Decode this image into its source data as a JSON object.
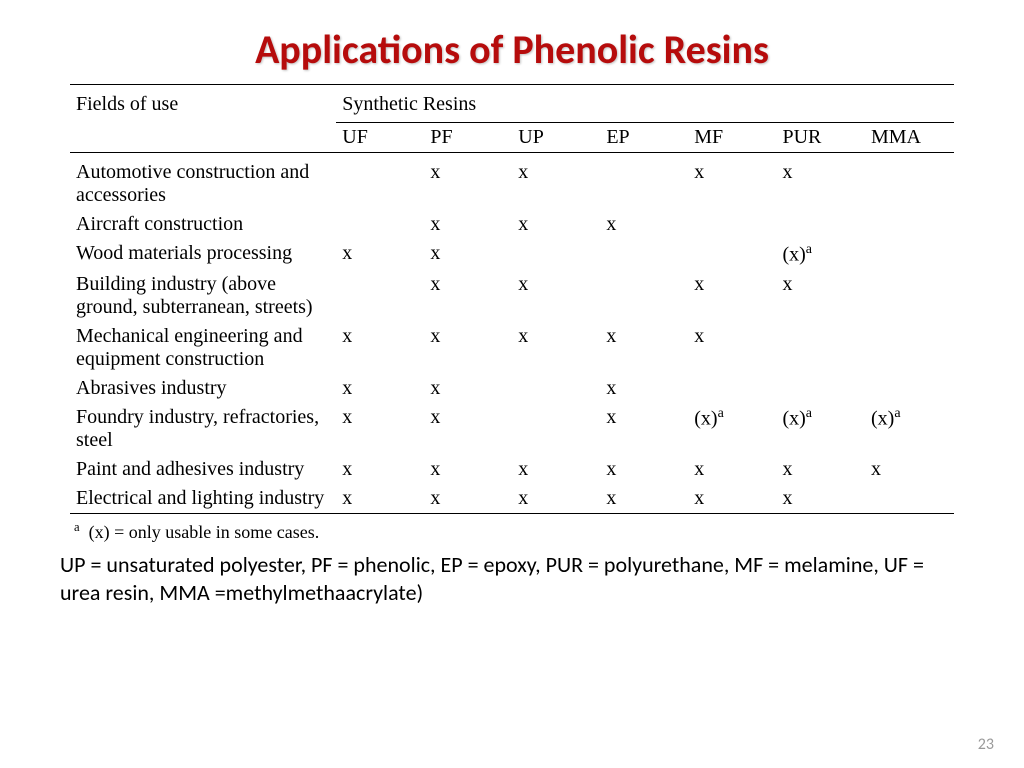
{
  "title": {
    "text": "Applications of Phenolic Resins",
    "color": "#b60c0c"
  },
  "table": {
    "head_left": "Fields of use",
    "head_right": "Synthetic Resins",
    "resins": [
      "UF",
      "PF",
      "UP",
      "EP",
      "MF",
      "PUR",
      "MMA"
    ],
    "rows": [
      {
        "field": "Automotive construction and accessories",
        "cells": [
          "",
          "x",
          "x",
          "",
          "x",
          "x",
          ""
        ]
      },
      {
        "field": "Aircraft construction",
        "cells": [
          "",
          "x",
          "x",
          "x",
          "",
          "",
          ""
        ]
      },
      {
        "field": "Wood materials processing",
        "cells": [
          "x",
          "x",
          "",
          "",
          "",
          "(x)ᵃ",
          ""
        ]
      },
      {
        "field": "Building industry (above ground, subterranean, streets)",
        "cells": [
          "",
          "x",
          "x",
          "",
          "x",
          "x",
          ""
        ]
      },
      {
        "field": "Mechanical engineering and equipment construction",
        "cells": [
          "x",
          "x",
          "x",
          "x",
          "x",
          "",
          ""
        ]
      },
      {
        "field": "Abrasives industry",
        "cells": [
          "x",
          "x",
          "",
          "x",
          "",
          "",
          ""
        ]
      },
      {
        "field": "Foundry industry, refractories, steel",
        "cells": [
          "x",
          "x",
          "",
          "x",
          "(x)ᵃ",
          "(x)ᵃ",
          "(x)ᵃ"
        ]
      },
      {
        "field": "Paint and adhesives industry",
        "cells": [
          "x",
          "x",
          "x",
          "x",
          "x",
          "x",
          "x"
        ]
      },
      {
        "field": "Electrical and lighting industry",
        "cells": [
          "x",
          "x",
          "x",
          "x",
          "x",
          "x",
          ""
        ]
      }
    ]
  },
  "footnote": "ᵃ  (x) = only usable in some cases.",
  "legend": "UP = unsaturated polyester, PF = phenolic, EP = epoxy, PUR = polyurethane, MF = melamine, UF = urea resin, MMA =methylmethaacrylate)",
  "pagenum": "23"
}
